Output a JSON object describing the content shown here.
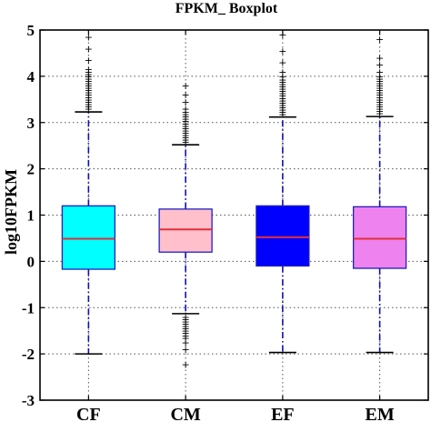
{
  "chart_data": {
    "type": "boxplot",
    "title": "FPKM_ Boxplot",
    "xlabel": "",
    "ylabel": "log10FPKM",
    "ylim": [
      -3,
      5
    ],
    "yticks": [
      "-3",
      "-2",
      "-1",
      "0",
      "1",
      "2",
      "3",
      "4",
      "5"
    ],
    "grid": true,
    "categories": [
      "CF",
      "CM",
      "EF",
      "EM"
    ],
    "boxes": [
      {
        "category": "CF",
        "color": "#00ffff",
        "whisker_low": -2.0,
        "q1": -0.17,
        "median": 0.49,
        "q3": 1.2,
        "whisker_high": 3.23,
        "outliers_high": [
          3.3,
          3.35,
          3.4,
          3.45,
          3.5,
          3.55,
          3.6,
          3.65,
          3.7,
          3.75,
          3.8,
          3.85,
          3.9,
          3.95,
          4.0,
          4.05,
          4.1,
          4.15,
          4.35,
          4.6,
          4.85
        ],
        "outliers_low": []
      },
      {
        "category": "CM",
        "color": "#ffc0cb",
        "whisker_low": -1.13,
        "q1": 0.2,
        "median": 0.69,
        "q3": 1.13,
        "whisker_high": 2.52,
        "outliers_high": [
          2.58,
          2.63,
          2.68,
          2.73,
          2.78,
          2.83,
          2.88,
          2.93,
          2.98,
          3.03,
          3.08,
          3.13,
          3.18,
          3.23,
          3.3,
          3.45,
          3.6,
          3.8
        ],
        "outliers_low": [
          -1.2,
          -1.25,
          -1.3,
          -1.35,
          -1.4,
          -1.45,
          -1.5,
          -1.55,
          -1.6,
          -1.65,
          -1.75,
          -1.9,
          -2.22
        ]
      },
      {
        "category": "EF",
        "color": "#0000ff",
        "whisker_low": -1.97,
        "q1": -0.1,
        "median": 0.52,
        "q3": 1.2,
        "whisker_high": 3.12,
        "outliers_high": [
          3.18,
          3.23,
          3.28,
          3.33,
          3.38,
          3.43,
          3.48,
          3.53,
          3.58,
          3.63,
          3.68,
          3.73,
          3.78,
          3.83,
          3.88,
          3.93,
          4.0,
          4.1,
          4.3,
          4.55,
          4.9
        ],
        "outliers_low": []
      },
      {
        "category": "EM",
        "color": "#ee82ee",
        "whisker_low": -1.97,
        "q1": -0.15,
        "median": 0.49,
        "q3": 1.18,
        "whisker_high": 3.13,
        "outliers_high": [
          3.2,
          3.25,
          3.3,
          3.35,
          3.4,
          3.45,
          3.5,
          3.55,
          3.6,
          3.65,
          3.7,
          3.75,
          3.8,
          3.85,
          3.9,
          3.95,
          4.0,
          4.1,
          4.25,
          4.4,
          4.8
        ],
        "outliers_low": []
      }
    ],
    "median_color": "#e0303a",
    "whisker_color": "#1010b0",
    "outlier_marker": "+"
  }
}
